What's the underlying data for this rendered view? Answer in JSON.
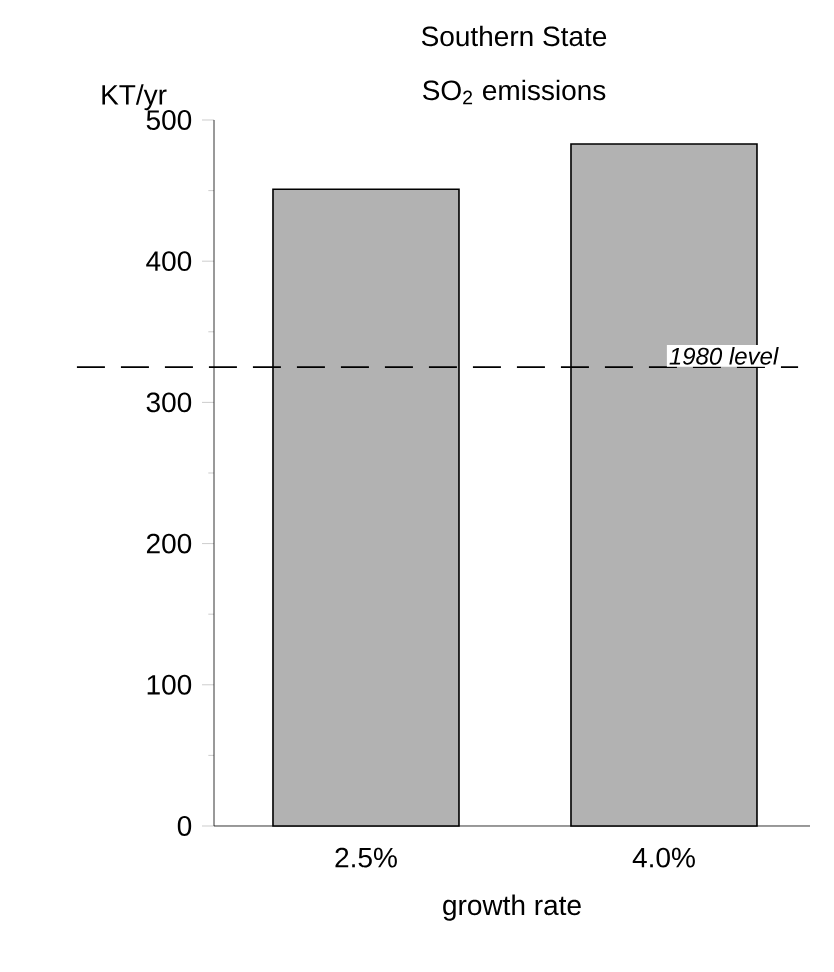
{
  "chart_data": {
    "type": "bar",
    "title": "Southern State",
    "subtitle": "SO$_{2}$ emissions",
    "ylabel": "KT/yr",
    "xlabel": "growth rate",
    "categories": [
      "2.5%",
      "4.0%"
    ],
    "values": [
      451,
      483
    ],
    "color": "#000000",
    "ylim": [
      0,
      500
    ],
    "yticks": [
      0,
      100,
      200,
      300,
      400,
      500
    ],
    "ref_lines": [
      {
        "axis": "y",
        "value": 325,
        "label": "1980 level",
        "line_style": "dashed"
      }
    ],
    "grid": false
  }
}
